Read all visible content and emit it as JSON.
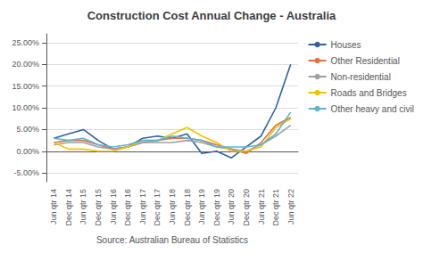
{
  "chart_data": {
    "type": "line",
    "title": "Construction Cost Annual Change - Australia",
    "xlabel": "Source: Australian Bureau of Statistics",
    "categories": [
      "Jun qtr 14",
      "Dec qtr 14",
      "Jun qtr 15",
      "Dec qtr 15",
      "Jun qtr 16",
      "Dec qtr 16",
      "Jun qtr 17",
      "Dec qtr 17",
      "Jun qtr 18",
      "Dec qtr 18",
      "Jun qtr 19",
      "Dec qtr 19",
      "Jun qtr 20",
      "Dec qtr 20",
      "Jun qtr 21",
      "Dec qtr 21",
      "Jun qtr 22"
    ],
    "series": [
      {
        "name": "Houses",
        "color": "#2e5fa3",
        "values": [
          0.03,
          0.04,
          0.05,
          0.025,
          0.005,
          0.01,
          0.03,
          0.035,
          0.03,
          0.04,
          -0.005,
          0.0,
          -0.015,
          0.01,
          0.035,
          0.1,
          0.2
        ]
      },
      {
        "name": "Other Residential",
        "color": "#e8703a",
        "values": [
          0.02,
          0.025,
          0.025,
          0.015,
          0.005,
          0.01,
          0.02,
          0.025,
          0.03,
          0.03,
          0.025,
          0.015,
          0.005,
          -0.005,
          0.02,
          0.06,
          0.078
        ]
      },
      {
        "name": "Non-residential",
        "color": "#a0a0a0",
        "values": [
          0.015,
          0.02,
          0.02,
          0.01,
          0.005,
          0.01,
          0.02,
          0.02,
          0.02,
          0.025,
          0.02,
          0.01,
          0.005,
          0.0,
          0.015,
          0.035,
          0.06
        ]
      },
      {
        "name": "Roads and Bridges",
        "color": "#f5c200",
        "values": [
          0.02,
          0.005,
          0.005,
          0.0,
          0.0,
          0.01,
          0.025,
          0.025,
          0.04,
          0.055,
          0.035,
          0.02,
          0.0,
          0.0,
          0.01,
          0.055,
          0.075
        ]
      },
      {
        "name": "Other heavy and civil",
        "color": "#5ab4d6",
        "values": [
          0.03,
          0.025,
          0.03,
          0.015,
          0.01,
          0.015,
          0.025,
          0.025,
          0.035,
          0.03,
          0.025,
          0.01,
          0.01,
          0.01,
          0.015,
          0.04,
          0.09
        ]
      }
    ],
    "ylim": [
      -0.07,
      0.27
    ],
    "yticks": [
      {
        "value": -0.05,
        "label": "-5.00%"
      },
      {
        "value": 0,
        "label": "0.00%"
      },
      {
        "value": 0.05,
        "label": "5.00%"
      },
      {
        "value": 0.1,
        "label": "10.00%"
      },
      {
        "value": 0.15,
        "label": "15.00%"
      },
      {
        "value": 0.2,
        "label": "20.00%"
      },
      {
        "value": 0.25,
        "label": "25.00%"
      }
    ],
    "grid": true,
    "legend": "upper right"
  }
}
